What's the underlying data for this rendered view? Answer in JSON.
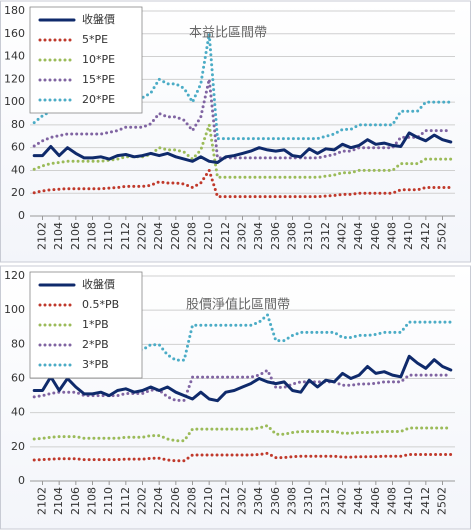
{
  "chart_data": [
    {
      "type": "line",
      "annotation": "本益比區間帶",
      "legend": "upper left",
      "grid": true,
      "ylim": [
        0,
        180
      ],
      "yticks": [
        0,
        20,
        40,
        60,
        80,
        100,
        120,
        140,
        160,
        180
      ],
      "categories": [
        null,
        "2102",
        null,
        "2104",
        null,
        "2106",
        null,
        "2108",
        null,
        "2110",
        null,
        "2112",
        null,
        "2202",
        null,
        "2204",
        null,
        "2206",
        null,
        "2208",
        null,
        "2210",
        null,
        "2212",
        null,
        "2302",
        null,
        "2304",
        null,
        "2306",
        null,
        "2308",
        null,
        "2310",
        null,
        "2312",
        null,
        "2402",
        null,
        "2404",
        null,
        "2406",
        null,
        "2408",
        null,
        "2410",
        null,
        "2412",
        null,
        "2502",
        null
      ],
      "series": [
        {
          "name": "收盤價",
          "color": "#0f2a6b",
          "values": [
            53,
            53,
            61,
            53,
            60,
            55,
            51,
            51,
            52,
            50,
            53,
            54,
            52,
            53,
            55,
            53,
            55,
            52,
            50,
            48,
            52,
            48,
            47,
            52,
            53,
            55,
            57,
            60,
            58,
            57,
            58,
            53,
            52,
            59,
            55,
            59,
            58,
            63,
            60,
            62,
            67,
            63,
            64,
            62,
            61,
            73,
            69,
            66,
            71,
            67,
            65
          ]
        },
        {
          "name": "5*PE",
          "color": "#c0392b",
          "values": [
            20.5,
            22,
            23,
            23.5,
            24,
            24,
            24,
            24,
            24,
            24.5,
            25,
            26,
            26,
            26,
            27,
            30,
            29,
            29,
            28,
            25,
            29,
            40,
            17,
            17,
            17,
            17,
            17,
            17,
            17,
            17,
            17,
            17,
            17,
            17,
            17,
            17.5,
            18,
            19,
            19,
            20,
            20,
            20,
            20,
            20,
            23,
            23,
            23,
            25,
            25,
            25,
            25
          ]
        },
        {
          "name": "10*PE",
          "color": "#9bbb59",
          "values": [
            41,
            44,
            46,
            47,
            48,
            48,
            48,
            48,
            48,
            49,
            50,
            52,
            52,
            52,
            54,
            60,
            58,
            58,
            56,
            50,
            58,
            80,
            34,
            34,
            34,
            34,
            34,
            34,
            34,
            34,
            34,
            34,
            34,
            34,
            34,
            35,
            36,
            38,
            38,
            40,
            40,
            40,
            40,
            40,
            46,
            46,
            46,
            50,
            50,
            50,
            50
          ]
        },
        {
          "name": "15*PE",
          "color": "#8064a2",
          "values": [
            61.5,
            66,
            69,
            70.5,
            72,
            72,
            72,
            72,
            72,
            73.5,
            75,
            78,
            78,
            78,
            81,
            90,
            87,
            87,
            84,
            75,
            87,
            120,
            51,
            51,
            51,
            51,
            51,
            51,
            51,
            51,
            51,
            51,
            51,
            51,
            51,
            52.5,
            54,
            57,
            57,
            60,
            60,
            60,
            60,
            60,
            69,
            69,
            69,
            75,
            75,
            75,
            75
          ]
        },
        {
          "name": "20*PE",
          "color": "#4bacc6",
          "values": [
            82,
            88,
            92,
            94,
            96,
            96,
            96,
            96,
            96,
            98,
            100,
            104,
            104,
            104,
            108,
            120,
            116,
            116,
            112,
            100,
            116,
            160,
            68,
            68,
            68,
            68,
            68,
            68,
            68,
            68,
            68,
            68,
            68,
            68,
            68,
            70,
            72,
            76,
            76,
            80,
            80,
            80,
            80,
            80,
            92,
            92,
            92,
            100,
            100,
            100,
            100
          ]
        }
      ]
    },
    {
      "type": "line",
      "annotation": "股價淨值比區間帶",
      "legend": "upper left",
      "grid": true,
      "ylim": [
        0,
        120
      ],
      "yticks": [
        0,
        20,
        40,
        60,
        80,
        100,
        120
      ],
      "categories": [
        null,
        "2102",
        null,
        "2104",
        null,
        "2106",
        null,
        "2108",
        null,
        "2110",
        null,
        "2112",
        null,
        "2202",
        null,
        "2204",
        null,
        "2206",
        null,
        "2208",
        null,
        "2210",
        null,
        "2212",
        null,
        "2302",
        null,
        "2304",
        null,
        "2306",
        null,
        "2308",
        null,
        "2310",
        null,
        "2312",
        null,
        "2402",
        null,
        "2404",
        null,
        "2406",
        null,
        "2408",
        null,
        "2410",
        null,
        "2412",
        null,
        "2502",
        null
      ],
      "series": [
        {
          "name": "收盤價",
          "color": "#0f2a6b",
          "values": [
            53,
            53,
            61,
            53,
            60,
            55,
            51,
            51,
            52,
            50,
            53,
            54,
            52,
            53,
            55,
            53,
            55,
            52,
            50,
            48,
            52,
            48,
            47,
            52,
            53,
            55,
            57,
            60,
            58,
            57,
            58,
            53,
            52,
            59,
            55,
            59,
            58,
            63,
            60,
            62,
            67,
            63,
            64,
            62,
            61,
            73,
            69,
            66,
            71,
            67,
            65
          ]
        },
        {
          "name": "0.5*PB",
          "color": "#c0392b",
          "values": [
            12.3,
            12.5,
            12.8,
            13,
            13,
            13,
            12.5,
            12.5,
            12.5,
            12.5,
            12.5,
            12.8,
            12.8,
            12.8,
            13.3,
            13.3,
            12.3,
            11.8,
            11.8,
            15.2,
            15.2,
            15.2,
            15.2,
            15.2,
            15.2,
            15.2,
            15.2,
            15.5,
            16.2,
            13.7,
            13.7,
            14.2,
            14.5,
            14.5,
            14.5,
            14.5,
            14.5,
            14,
            14,
            14.2,
            14.2,
            14.3,
            14.5,
            14.5,
            14.5,
            15.5,
            15.5,
            15.5,
            15.5,
            15.5,
            15.5
          ]
        },
        {
          "name": "1*PB",
          "color": "#9bbb59",
          "values": [
            24.6,
            25,
            25.6,
            26,
            26,
            26,
            25,
            25,
            25,
            25,
            25,
            25.6,
            25.6,
            25.6,
            26.6,
            26.6,
            24.6,
            23.6,
            23.6,
            30.4,
            30.4,
            30.4,
            30.4,
            30.4,
            30.4,
            30.4,
            30.4,
            31,
            32.4,
            27.4,
            27.4,
            28.4,
            29,
            29,
            29,
            29,
            29,
            28,
            28,
            28.4,
            28.4,
            28.6,
            29,
            29,
            29,
            31,
            31,
            31,
            31,
            31,
            31
          ]
        },
        {
          "name": "2*PB",
          "color": "#8064a2",
          "values": [
            49.2,
            50,
            51.2,
            52,
            52,
            52,
            50,
            50,
            50,
            50,
            50,
            51.2,
            51.2,
            51.2,
            53.2,
            53.2,
            49.2,
            47.2,
            47.2,
            60.8,
            60.8,
            60.8,
            60.8,
            60.8,
            60.8,
            60.8,
            60.8,
            62,
            64.8,
            54.8,
            54.8,
            56.8,
            58,
            58,
            58,
            58,
            58,
            56,
            56,
            56.8,
            56.8,
            57.2,
            58,
            58,
            58,
            62,
            62,
            62,
            62,
            62,
            62
          ]
        },
        {
          "name": "3*PB",
          "color": "#4bacc6",
          "values": [
            73.8,
            75,
            76.8,
            78,
            78,
            78,
            75,
            75,
            75,
            75,
            75,
            76.8,
            76.8,
            76.8,
            79.8,
            79.8,
            73.8,
            70.8,
            70.8,
            91.2,
            91.2,
            91.2,
            91.2,
            91.2,
            91.2,
            91.2,
            91.2,
            93,
            97.2,
            82.2,
            82.2,
            85.2,
            87,
            87,
            87,
            87,
            87,
            84,
            84,
            85.2,
            85.2,
            85.8,
            87,
            87,
            87,
            93,
            93,
            93,
            93,
            93,
            93
          ]
        }
      ]
    }
  ]
}
